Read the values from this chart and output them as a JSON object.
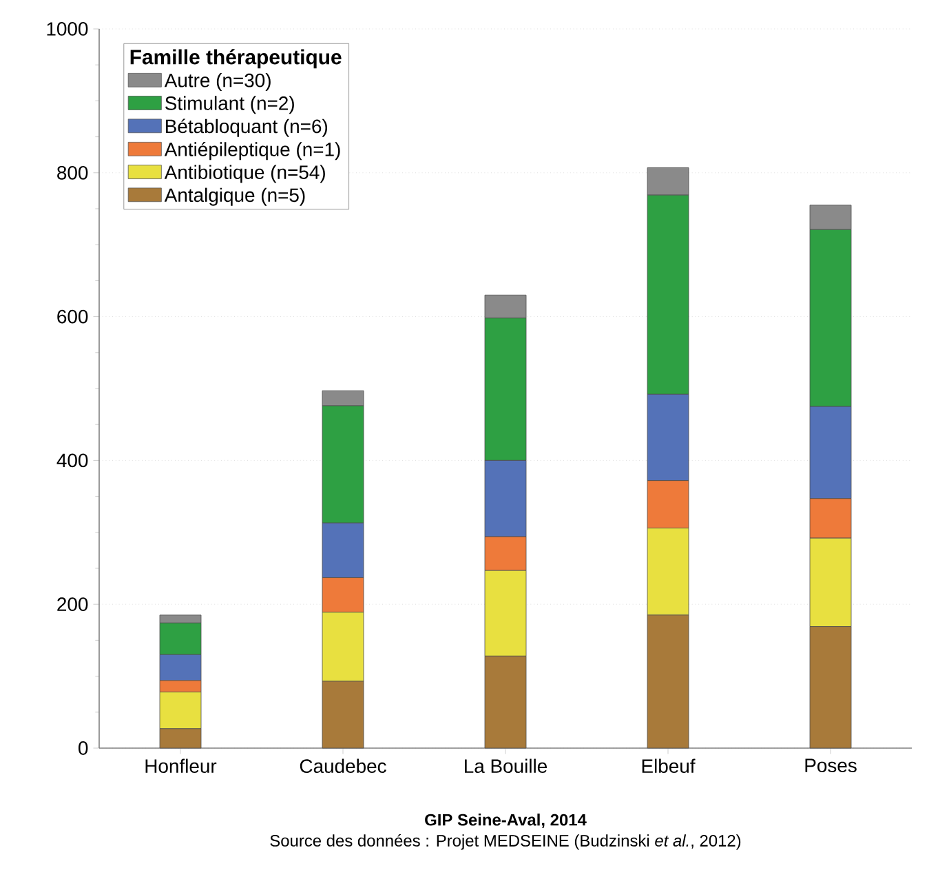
{
  "chart_data": {
    "type": "bar",
    "stacked": true,
    "categories": [
      "Honfleur",
      "Caudebec",
      "La Bouille",
      "Elbeuf",
      "Poses"
    ],
    "series": [
      {
        "name": "Antalgique (n=5)",
        "color": "#a87a3a",
        "values": [
          27,
          93,
          128,
          185,
          169
        ]
      },
      {
        "name": "Antibiotique (n=54)",
        "color": "#e8e040",
        "values": [
          51,
          96,
          119,
          121,
          123
        ]
      },
      {
        "name": "Antiépileptique (n=1)",
        "color": "#ee7a3a",
        "values": [
          16,
          48,
          47,
          66,
          55
        ]
      },
      {
        "name": "Bétabloquant (n=6)",
        "color": "#5472b8",
        "values": [
          36,
          76,
          106,
          120,
          128
        ]
      },
      {
        "name": "Stimulant (n=2)",
        "color": "#2ea043",
        "values": [
          44,
          163,
          198,
          277,
          246
        ]
      },
      {
        "name": "Autre (n=30)",
        "color": "#8a8a8a",
        "values": [
          11,
          21,
          32,
          38,
          34
        ]
      }
    ],
    "legend_title": "Famille thérapeutique",
    "legend": "top left",
    "grid": "y",
    "ylim": [
      0,
      1000
    ],
    "yticks": [
      0,
      200,
      400,
      600,
      800,
      1000
    ],
    "annotations": [
      "GIP Seine-Aval, 2014",
      "Source des données : Projet MEDSEINE (Budzinski *et al.*, 2012)"
    ]
  }
}
